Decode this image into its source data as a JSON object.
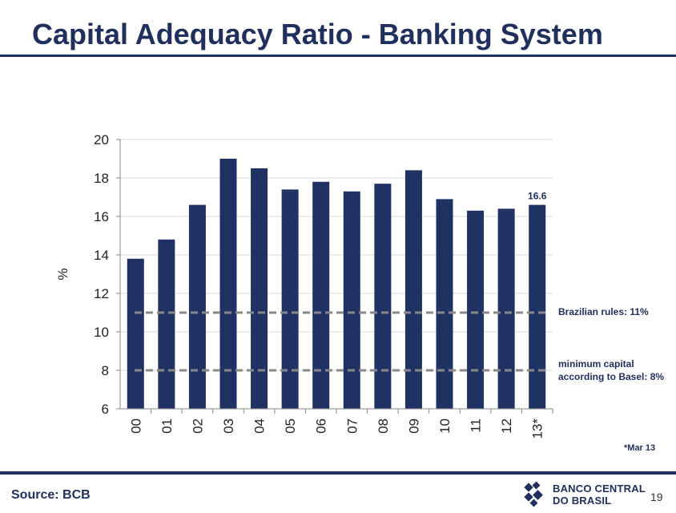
{
  "title": "Capital Adequacy Ratio - Banking System",
  "source": "Source: BCB",
  "page_number": "19",
  "footnote": "*Mar 13",
  "logo": {
    "line1": "BANCO CENTRAL",
    "line2": "DO BRASIL",
    "icon": "bcb-logo-icon"
  },
  "colors": {
    "bar": "#1f3263",
    "title": "#1f2f5e",
    "reference_line": "#888888",
    "grid": "#d9d9d9"
  },
  "chart_data": {
    "type": "bar",
    "categories": [
      "00",
      "01",
      "02",
      "03",
      "04",
      "05",
      "06",
      "07",
      "08",
      "09",
      "10",
      "11",
      "12",
      "13*"
    ],
    "values": [
      13.8,
      14.8,
      16.6,
      19.0,
      18.5,
      17.4,
      17.8,
      17.3,
      17.7,
      18.4,
      16.9,
      16.3,
      16.4,
      16.6
    ],
    "ylabel": "%",
    "ylim": [
      6,
      20
    ],
    "yticks": [
      6,
      8,
      10,
      12,
      14,
      16,
      18,
      20
    ],
    "grid": true,
    "data_labels": [
      {
        "category": "13*",
        "label": "16.6"
      }
    ],
    "reference_lines": [
      {
        "value": 11,
        "label": "Brazilian rules: 11%"
      },
      {
        "value": 8,
        "label": "minimum capital according to Basel: 8%"
      }
    ]
  }
}
